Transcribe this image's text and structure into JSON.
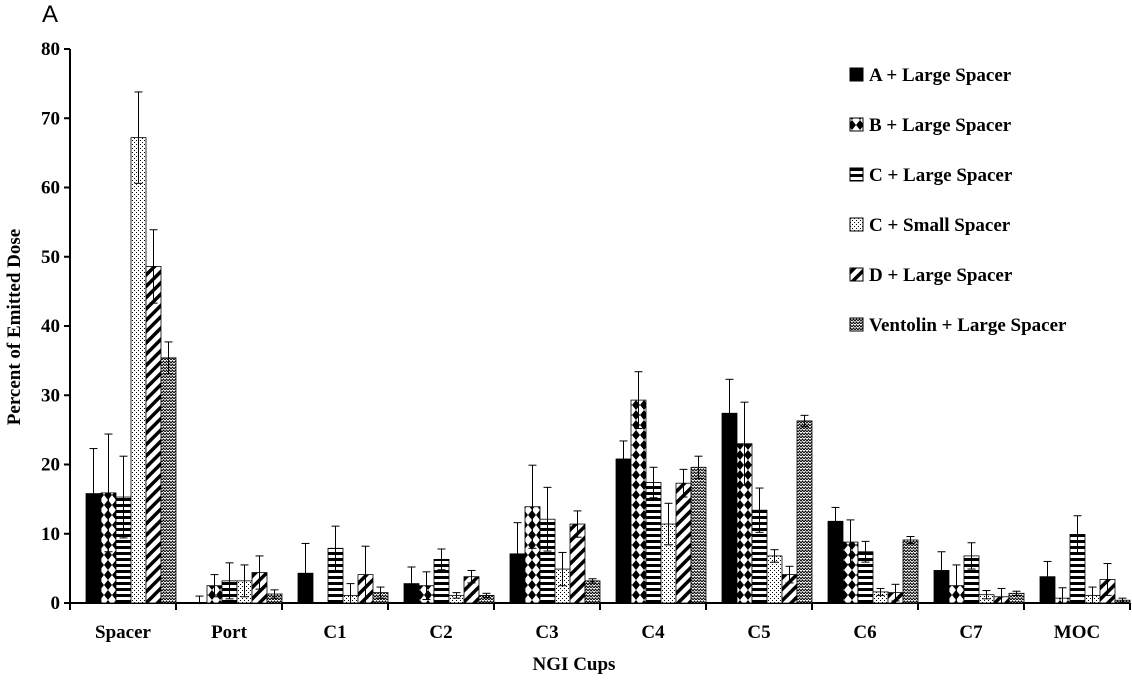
{
  "panel_label": "A",
  "colors": {
    "axis": "#000000",
    "bar_stroke": "#000000",
    "bar_fill": "#000000",
    "background": "#ffffff"
  },
  "chart_data": {
    "type": "bar",
    "title": "",
    "panel_label": "A",
    "xlabel": "NGI Cups",
    "ylabel": "Percent of Emitted Dose",
    "ylim": [
      0,
      80
    ],
    "yticks": [
      0,
      10,
      20,
      30,
      40,
      50,
      60,
      70,
      80
    ],
    "grid": false,
    "legend_position": "top-right",
    "error_bars": true,
    "categories": [
      "Spacer",
      "Port",
      "C1",
      "C2",
      "C3",
      "C4",
      "C5",
      "C6",
      "C7",
      "MOC"
    ],
    "series": [
      {
        "name": "A + Large Spacer",
        "pattern": "solid",
        "values": [
          15.8,
          0.0,
          4.3,
          2.8,
          7.1,
          20.8,
          27.4,
          11.8,
          4.7,
          3.8
        ],
        "errors": [
          6.5,
          1.0,
          4.3,
          2.4,
          4.5,
          2.6,
          4.9,
          2.0,
          2.7,
          2.2
        ]
      },
      {
        "name": "B + Large Spacer",
        "pattern": "diamonds",
        "values": [
          15.9,
          2.5,
          0.0,
          2.5,
          13.9,
          29.3,
          23.0,
          8.8,
          2.5,
          0.7
        ],
        "errors": [
          8.5,
          1.6,
          0.0,
          2.0,
          6.0,
          4.1,
          6.0,
          3.2,
          3.0,
          1.5
        ]
      },
      {
        "name": "C + Large Spacer",
        "pattern": "horizontal-stripes",
        "values": [
          15.3,
          3.2,
          7.9,
          6.3,
          12.1,
          17.4,
          13.4,
          7.4,
          6.8,
          9.9
        ],
        "errors": [
          5.9,
          2.6,
          3.2,
          1.5,
          4.6,
          2.2,
          3.2,
          1.5,
          1.9,
          2.7
        ]
      },
      {
        "name": "C + Small Spacer",
        "pattern": "dots",
        "values": [
          67.2,
          3.2,
          1.1,
          1.1,
          4.9,
          11.4,
          6.8,
          1.6,
          1.2,
          1.1
        ],
        "errors": [
          6.6,
          2.3,
          1.7,
          0.4,
          2.4,
          3.0,
          0.9,
          0.5,
          0.6,
          1.2
        ]
      },
      {
        "name": "D + Large Spacer",
        "pattern": "diagonal-stripes",
        "values": [
          48.6,
          4.4,
          4.1,
          3.8,
          11.4,
          17.3,
          4.1,
          1.5,
          0.9,
          3.4
        ],
        "errors": [
          5.3,
          2.4,
          4.1,
          0.9,
          1.9,
          2.0,
          1.2,
          1.2,
          1.2,
          2.3
        ]
      },
      {
        "name": "Ventolin + Large Spacer",
        "pattern": "zigzag",
        "values": [
          35.4,
          1.3,
          1.5,
          1.1,
          3.2,
          19.6,
          26.3,
          9.1,
          1.4,
          0.4
        ],
        "errors": [
          2.3,
          0.6,
          0.8,
          0.3,
          0.3,
          1.6,
          0.8,
          0.5,
          0.3,
          0.3
        ]
      }
    ]
  }
}
